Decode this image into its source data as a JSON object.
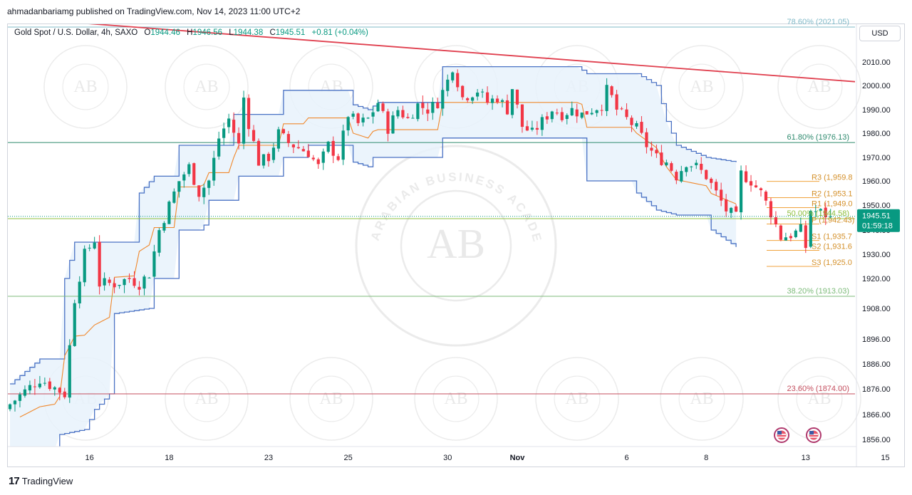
{
  "header": {
    "published_by": "ahmadanbariamg published on TradingView.com, Nov 14, 2023 11:00 UTC+2"
  },
  "legend": {
    "symbol": "Gold Spot / U.S. Dollar, 4h, SAXO",
    "open_label": "O",
    "open": "1944.46",
    "high_label": "H",
    "high": "1946.56",
    "low_label": "L",
    "low": "1944.38",
    "close_label": "C",
    "close": "1945.51",
    "change": "+0.81 (+0.04%)"
  },
  "axis": {
    "currency": "USD"
  },
  "price_tag": {
    "price": "1945.51",
    "countdown": "01:59:18"
  },
  "footer": {
    "brand": "TradingView",
    "logo_text": "17"
  },
  "watermark": {
    "text_top": "ARABIAN BUSINESS ACADEMY",
    "monogram": "AB"
  },
  "colors": {
    "up": "#089981",
    "down": "#f23645",
    "channel": "#4a72c4",
    "channel_fill": "#e8f2fb",
    "mid": "#f0882c",
    "trend": "#e0404f",
    "fib_786": "#7fb8c7",
    "fib_618": "#2e8a6e",
    "fib_500": "#8fbf3e",
    "fib_382": "#7dbb7a",
    "fib_236": "#c44e5e",
    "pivot": "#f0a23c"
  },
  "chart_data": {
    "type": "candlestick",
    "title": "Gold Spot / U.S. Dollar, 4h, SAXO",
    "y_ticks": [
      2010,
      2000,
      1990,
      1980,
      1970,
      1960,
      1950,
      1940,
      1930,
      1920,
      1908,
      1896,
      1886,
      1876,
      1866,
      1856
    ],
    "y_tick_labels": [
      "2010.00",
      "2000.00",
      "1990.00",
      "1980.00",
      "1970.00",
      "1960.00",
      "1950.00",
      "1940.00",
      "1930.00",
      "1920.00",
      "1908.00",
      "1896.00",
      "1886.00",
      "1876.00",
      "1866.00",
      "1856.00"
    ],
    "x_ticks": [
      {
        "label": "16",
        "index": 16
      },
      {
        "label": "18",
        "index": 32
      },
      {
        "label": "23",
        "index": 52
      },
      {
        "label": "25",
        "index": 68
      },
      {
        "label": "30",
        "index": 88
      },
      {
        "label": "Nov",
        "index": 102
      },
      {
        "label": "6",
        "index": 124
      },
      {
        "label": "8",
        "index": 140
      },
      {
        "label": "13",
        "index": 160
      },
      {
        "label": "15",
        "index": 176
      }
    ],
    "candle_count": 170,
    "fib_levels": [
      {
        "label": "78.60% (2021.05)",
        "value": 2021.05
      },
      {
        "label": "61.80% (1976.13)",
        "value": 1976.13
      },
      {
        "label": "50.00% (1944.58)",
        "value": 1944.58
      },
      {
        "label": "38.20% (1913.03)",
        "value": 1913.03
      },
      {
        "label": "23.60% (1874.00)",
        "value": 1874.0
      }
    ],
    "pivots": [
      {
        "label": "R3 (1,959.8",
        "value": 1959.8
      },
      {
        "label": "R2 (1,953.1",
        "value": 1953.1
      },
      {
        "label": "R1 (1,949.0",
        "value": 1949.0
      },
      {
        "label": "P (1,942.43)",
        "value": 1942.43
      },
      {
        "label": "S1 (1,935.7",
        "value": 1935.7
      },
      {
        "label": "S2 (1,931.6",
        "value": 1931.6
      },
      {
        "label": "S3 (1,925.0",
        "value": 1925.0
      }
    ],
    "trendline": {
      "start": {
        "index": 0,
        "price": 2025
      },
      "end": {
        "index": 180,
        "price": 2000
      }
    },
    "last_price": 1945.51,
    "close_path": [
      [
        0,
        1870
      ],
      [
        6,
        1880
      ],
      [
        11,
        1874
      ],
      [
        13,
        1912
      ],
      [
        15,
        1930
      ],
      [
        17,
        1936
      ],
      [
        18,
        1918
      ],
      [
        21,
        1918
      ],
      [
        24,
        1920
      ],
      [
        26,
        1918
      ],
      [
        28,
        1922
      ],
      [
        30,
        1940
      ],
      [
        32,
        1950
      ],
      [
        34,
        1960
      ],
      [
        36,
        1966
      ],
      [
        38,
        1955
      ],
      [
        40,
        1960
      ],
      [
        42,
        1978
      ],
      [
        44,
        1986
      ],
      [
        46,
        1975
      ],
      [
        47,
        1995
      ],
      [
        48,
        1984
      ],
      [
        50,
        1968
      ],
      [
        52,
        1970
      ],
      [
        54,
        1980
      ],
      [
        56,
        1976
      ],
      [
        58,
        1974
      ],
      [
        60,
        1972
      ],
      [
        62,
        1966
      ],
      [
        64,
        1975
      ],
      [
        66,
        1970
      ],
      [
        68,
        1988
      ],
      [
        70,
        1984
      ],
      [
        72,
        1986
      ],
      [
        74,
        1993
      ],
      [
        76,
        1982
      ],
      [
        78,
        1990
      ],
      [
        80,
        1986
      ],
      [
        82,
        1992
      ],
      [
        84,
        1990
      ],
      [
        86,
        1993
      ],
      [
        88,
        2002
      ],
      [
        89,
        2008
      ],
      [
        91,
        1995
      ],
      [
        94,
        1998
      ],
      [
        96,
        1993
      ],
      [
        98,
        1995
      ],
      [
        100,
        1990
      ],
      [
        101,
        1999
      ],
      [
        103,
        1983
      ],
      [
        105,
        1980
      ],
      [
        107,
        1985
      ],
      [
        109,
        1990
      ],
      [
        111,
        1988
      ],
      [
        113,
        1990
      ],
      [
        115,
        1988
      ],
      [
        117,
        1990
      ],
      [
        119,
        1992
      ],
      [
        120,
        1998
      ],
      [
        121,
        1995
      ],
      [
        122,
        1990
      ],
      [
        124,
        1986
      ],
      [
        126,
        1982
      ],
      [
        128,
        1975
      ],
      [
        130,
        1970
      ],
      [
        132,
        1968
      ],
      [
        134,
        1962
      ],
      [
        136,
        1968
      ],
      [
        138,
        1966
      ],
      [
        140,
        1962
      ],
      [
        142,
        1955
      ],
      [
        144,
        1948
      ],
      [
        146,
        1945
      ],
      [
        147,
        1963
      ],
      [
        149,
        1960
      ],
      [
        151,
        1955
      ],
      [
        153,
        1947
      ],
      [
        155,
        1937
      ],
      [
        157,
        1938
      ],
      [
        159,
        1940
      ],
      [
        160,
        1933
      ],
      [
        161,
        1948
      ],
      [
        163,
        1947
      ],
      [
        165,
        1945.51
      ]
    ],
    "channel_upper": [
      [
        0,
        1878
      ],
      [
        6,
        1888
      ],
      [
        10,
        1888
      ],
      [
        11,
        1920
      ],
      [
        13,
        1935
      ],
      [
        25,
        1935
      ],
      [
        26,
        1955
      ],
      [
        29,
        1962
      ],
      [
        33,
        1962
      ],
      [
        34,
        1975
      ],
      [
        44,
        1975
      ],
      [
        45,
        1988
      ],
      [
        54,
        1988
      ],
      [
        55,
        1998
      ],
      [
        68,
        1998
      ],
      [
        69,
        1992
      ],
      [
        72,
        1990
      ],
      [
        74,
        1993
      ],
      [
        86,
        1993
      ],
      [
        87,
        2008
      ],
      [
        114,
        2008
      ],
      [
        116,
        2005
      ],
      [
        126,
        2005
      ],
      [
        130,
        2000
      ],
      [
        132,
        1985
      ],
      [
        134,
        1975
      ],
      [
        140,
        1970
      ],
      [
        146,
        1968
      ]
    ],
    "channel_lower": [
      [
        0,
        1848
      ],
      [
        6,
        1850
      ],
      [
        9,
        1852
      ],
      [
        10,
        1858
      ],
      [
        15,
        1860
      ],
      [
        17,
        1868
      ],
      [
        20,
        1874
      ],
      [
        21,
        1906
      ],
      [
        28,
        1908
      ],
      [
        29,
        1920
      ],
      [
        33,
        1920
      ],
      [
        34,
        1940
      ],
      [
        38,
        1940
      ],
      [
        39,
        1942
      ],
      [
        40,
        1952
      ],
      [
        45,
        1952
      ],
      [
        46,
        1962
      ],
      [
        54,
        1962
      ],
      [
        55,
        1970
      ],
      [
        59,
        1970
      ],
      [
        60,
        1975
      ],
      [
        68,
        1975
      ],
      [
        69,
        1968
      ],
      [
        72,
        1966
      ],
      [
        73,
        1970
      ],
      [
        86,
        1970
      ],
      [
        87,
        1978
      ],
      [
        89,
        1978
      ],
      [
        90,
        1978
      ],
      [
        115,
        1978
      ],
      [
        116,
        1960
      ],
      [
        125,
        1960
      ],
      [
        126,
        1955
      ],
      [
        130,
        1948
      ],
      [
        134,
        1946
      ],
      [
        140,
        1946
      ],
      [
        141,
        1940
      ],
      [
        146,
        1933
      ]
    ]
  }
}
